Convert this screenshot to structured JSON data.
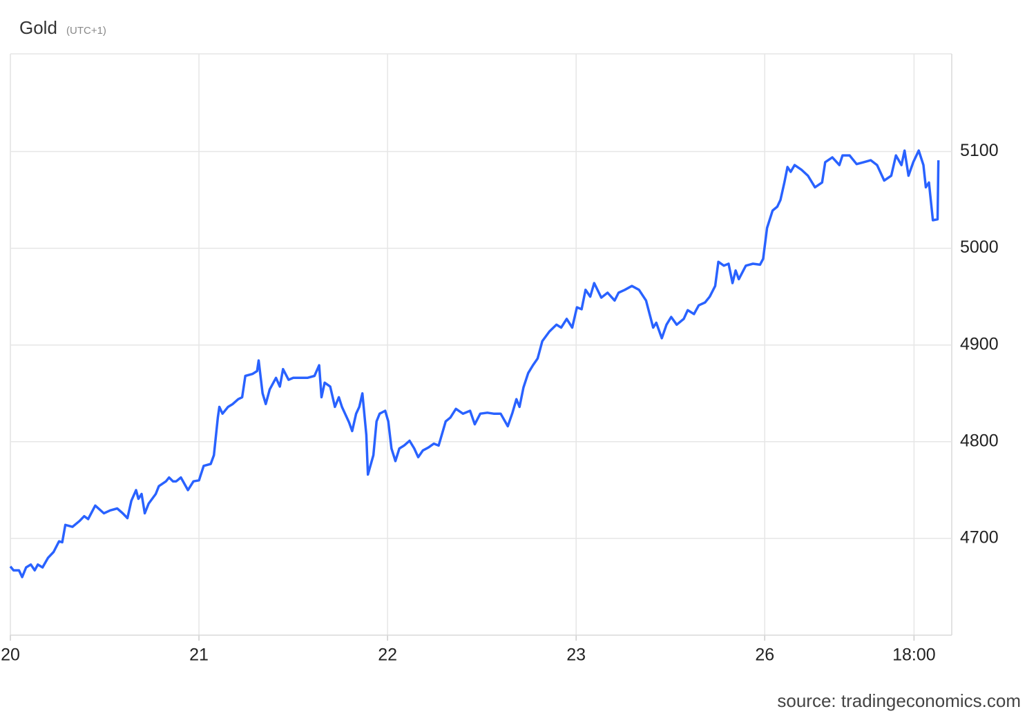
{
  "chart_data": {
    "type": "line",
    "title": "Gold",
    "subtitle": "(UTC+1)",
    "source": "source: tradingeconomics.com",
    "color": "#2962ff",
    "grid": true,
    "x": [
      0.0,
      0.4,
      1.1,
      1.5,
      2.0,
      2.6,
      3.1,
      3.5,
      4.1,
      4.8,
      5.5,
      6.2,
      6.6,
      7.0,
      7.9,
      8.8,
      9.4,
      9.9,
      10.8,
      11.9,
      12.7,
      13.6,
      14.3,
      14.9,
      15.4,
      16.0,
      16.3,
      16.7,
      17.1,
      17.6,
      18.5,
      18.9,
      19.8,
      20.2,
      20.7,
      21.1,
      21.7,
      22.6,
      23.3,
      24.0,
      24.6,
      25.5,
      25.9,
      26.4,
      26.6,
      27.0,
      27.7,
      28.3,
      29.0,
      29.5,
      29.9,
      30.8,
      31.4,
      31.6,
      32.1,
      32.5,
      33.0,
      33.8,
      34.3,
      34.7,
      35.4,
      36.0,
      36.9,
      37.8,
      38.7,
      39.3,
      39.6,
      40.0,
      40.7,
      41.3,
      41.8,
      42.2,
      43.1,
      43.5,
      44.0,
      44.4,
      44.8,
      45.3,
      45.5,
      46.2,
      46.6,
      47.0,
      47.7,
      48.1,
      48.5,
      49.0,
      49.5,
      50.1,
      50.8,
      51.4,
      51.9,
      52.5,
      53.2,
      53.9,
      54.5,
      54.9,
      55.4,
      56.0,
      56.7,
      57.6,
      58.5,
      59.1,
      59.8,
      60.7,
      61.5,
      62.4,
      63.3,
      63.9,
      64.4,
      64.8,
      65.3,
      65.9,
      66.5,
      67.1,
      67.7,
      68.6,
      69.5,
      70.1,
      70.8,
      71.5,
      72.1,
      72.7,
      73.2,
      73.8,
      74.3,
      75.2,
      76.0,
      76.9,
      77.4,
      78.2,
      79.1,
      80.0,
      80.9,
      81.8,
      82.2,
      82.9,
      83.5,
      84.1,
      84.8,
      85.7,
      86.2,
      87.0,
      87.6,
      88.4,
      89.0,
      89.7,
      90.1,
      90.8,
      91.4,
      91.9,
      92.3,
      92.7,
      93.6,
      94.5,
      95.4,
      95.8,
      96.3,
      97.0,
      97.6,
      98.0,
      98.5,
      98.9,
      99.3,
      99.8,
      100.7,
      101.5,
      102.4,
      103.3,
      103.7,
      104.6,
      105.5,
      105.9,
      106.8,
      107.7,
      108.6,
      109.5,
      110.3,
      111.2,
      112.1,
      112.7,
      113.4,
      113.8,
      114.3,
      114.9,
      115.6,
      116.2,
      116.5,
      116.9,
      117.4,
      118.0,
      118.1
    ],
    "values": [
      4671,
      4667,
      4667,
      4660,
      4670,
      4673,
      4667,
      4673,
      4670,
      4680,
      4686,
      4697,
      4696,
      4714,
      4712,
      4718,
      4723,
      4720,
      4734,
      4726,
      4729,
      4731,
      4726,
      4721,
      4739,
      4750,
      4741,
      4746,
      4726,
      4736,
      4746,
      4754,
      4759,
      4763,
      4759,
      4759,
      4763,
      4750,
      4759,
      4760,
      4775,
      4777,
      4786,
      4825,
      4836,
      4829,
      4836,
      4839,
      4844,
      4846,
      4868,
      4870,
      4873,
      4884,
      4850,
      4839,
      4854,
      4866,
      4857,
      4875,
      4864,
      4866,
      4866,
      4866,
      4868,
      4879,
      4846,
      4861,
      4857,
      4836,
      4846,
      4836,
      4820,
      4811,
      4829,
      4836,
      4850,
      4807,
      4766,
      4786,
      4821,
      4829,
      4832,
      4821,
      4793,
      4780,
      4793,
      4796,
      4801,
      4793,
      4784,
      4791,
      4794,
      4798,
      4796,
      4807,
      4821,
      4825,
      4834,
      4829,
      4832,
      4818,
      4829,
      4830,
      4829,
      4829,
      4816,
      4830,
      4844,
      4836,
      4856,
      4871,
      4879,
      4886,
      4904,
      4914,
      4921,
      4918,
      4927,
      4918,
      4939,
      4937,
      4957,
      4950,
      4964,
      4949,
      4954,
      4946,
      4954,
      4957,
      4961,
      4957,
      4946,
      4918,
      4923,
      4907,
      4921,
      4929,
      4921,
      4927,
      4936,
      4932,
      4941,
      4944,
      4950,
      4961,
      4986,
      4982,
      4984,
      4964,
      4977,
      4968,
      4982,
      4984,
      4983,
      4989,
      5021,
      5039,
      5043,
      5050,
      5068,
      5084,
      5079,
      5086,
      5081,
      5075,
      5063,
      5068,
      5089,
      5094,
      5086,
      5096,
      5096,
      5087,
      5089,
      5091,
      5086,
      5070,
      5075,
      5096,
      5086,
      5101,
      5075,
      5089,
      5101,
      5086,
      5063,
      5068,
      5029,
      5030,
      5091
    ],
    "xlim": [
      0,
      119.8
    ],
    "xticks": [
      {
        "value": 0,
        "label": "20"
      },
      {
        "value": 24,
        "label": "21"
      },
      {
        "value": 48,
        "label": "22"
      },
      {
        "value": 72,
        "label": "23"
      },
      {
        "value": 96,
        "label": "26"
      },
      {
        "value": 115,
        "label": "18:00"
      }
    ],
    "ylim": [
      4600,
      5201
    ],
    "yticks": [
      4700,
      4800,
      4900,
      5000,
      5100
    ]
  }
}
